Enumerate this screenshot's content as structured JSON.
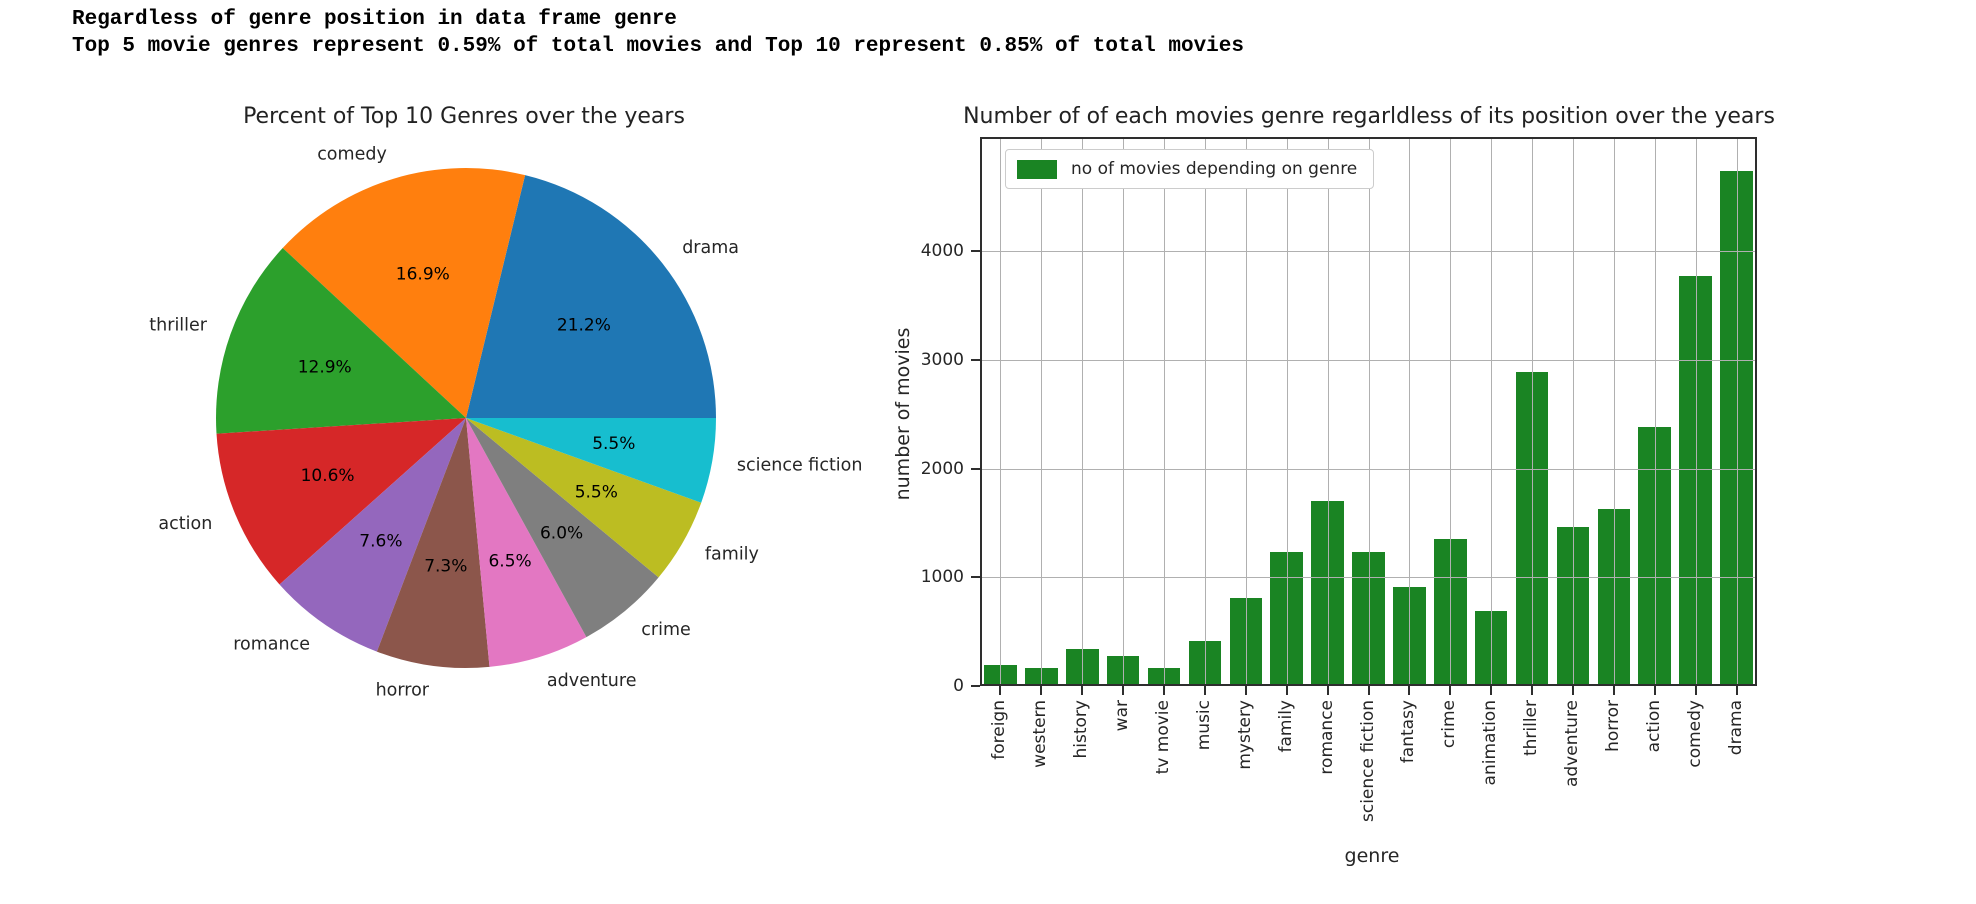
{
  "header": {
    "line1": "Regardless of genre position in data frame genre",
    "line2": "Top 5 movie genres represent 0.59% of total movies and Top 10 represent 0.85% of total movies"
  },
  "chart_data": [
    {
      "type": "pie",
      "title": "Percent of Top 10 Genres over the years",
      "labels": [
        "drama",
        "comedy",
        "thriller",
        "action",
        "romance",
        "horror",
        "adventure",
        "crime",
        "family",
        "science fiction"
      ],
      "values": [
        21.2,
        16.9,
        12.9,
        10.6,
        7.6,
        7.3,
        6.5,
        6.0,
        5.5,
        5.5
      ],
      "pct_labels": [
        "21.2%",
        "16.9%",
        "12.9%",
        "10.6%",
        "7.6%",
        "7.3%",
        "6.5%",
        "6.0%",
        "5.5%",
        "5.5%"
      ],
      "colors": [
        "#1f77b4",
        "#ff7f0e",
        "#2ca02c",
        "#d62728",
        "#9467bd",
        "#8c564b",
        "#e377c2",
        "#7f7f7f",
        "#bcbd22",
        "#17becf"
      ],
      "start_angle": 0,
      "counterclockwise": true,
      "label_distance": 1.1,
      "pct_distance": 0.6
    },
    {
      "type": "bar",
      "title": "Number of of each movies genre regarldless of its position over the years",
      "xlabel": "genre",
      "ylabel": "number of movies",
      "legend": [
        "no of movies depending on genre"
      ],
      "legend_position": "upper left",
      "bar_color": "#1a8423",
      "categories": [
        "foreign",
        "western",
        "history",
        "war",
        "tv movie",
        "music",
        "mystery",
        "family",
        "romance",
        "science fiction",
        "fantasy",
        "crime",
        "animation",
        "thriller",
        "adventure",
        "horror",
        "action",
        "comedy",
        "drama"
      ],
      "values": [
        190,
        170,
        340,
        280,
        170,
        410,
        810,
        1230,
        1700,
        1230,
        915,
        1350,
        690,
        2890,
        1460,
        1630,
        2385,
        3770,
        4740
      ],
      "yticks": [
        0,
        1000,
        2000,
        3000,
        4000
      ],
      "ylim": [
        0,
        5050
      ],
      "grid": true,
      "tick_rotation": 90,
      "bar_width_fraction": 0.8
    }
  ]
}
